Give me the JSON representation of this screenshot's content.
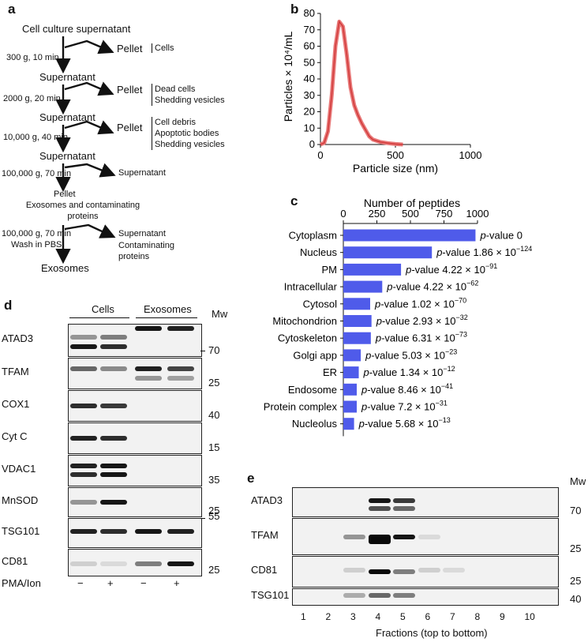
{
  "panel_a": {
    "label": "a",
    "start": "Cell culture supernatant",
    "steps": [
      {
        "condition": "300 g, 10 min",
        "product": "Pellet",
        "notes": [
          "Cells"
        ],
        "next": "Supernatant"
      },
      {
        "condition": "2000 g, 20 min",
        "product": "Pellet",
        "notes": [
          "Dead cells",
          "Shedding vesicles"
        ],
        "next": "Supernatant"
      },
      {
        "condition": "10,000 g, 40 min",
        "product": "Pellet",
        "notes": [
          "Cell debris",
          "Apoptotic bodies",
          "Shedding vesicles"
        ],
        "next": "Supernatant"
      },
      {
        "condition": "100,000 g, 70 min",
        "product": "Supernatant",
        "notes": [],
        "next": "Pellet"
      }
    ],
    "pellet_desc": "Exosomes and contaminating proteins",
    "final_condition_1": "100,000 g, 70 min",
    "final_condition_2": "Wash in PBS",
    "final_product_1": "Supernatant",
    "final_product_2": "Contaminating proteins",
    "final": "Exosomes"
  },
  "panel_b": {
    "label": "b",
    "chart_data": {
      "type": "line",
      "xlabel": "Particle size (nm)",
      "ylabel": "Particles × 10⁴/mL",
      "xlim": [
        0,
        1000
      ],
      "ylim": [
        0,
        80
      ],
      "xticks": [
        0,
        500,
        1000
      ],
      "yticks": [
        0,
        10,
        20,
        30,
        40,
        50,
        60,
        70,
        80
      ],
      "series": [
        {
          "x": [
            0,
            25,
            50,
            75,
            100,
            125,
            150,
            175,
            200,
            225,
            250,
            275,
            300,
            325,
            350,
            400,
            450,
            500,
            550
          ],
          "values": [
            0,
            1,
            8,
            30,
            60,
            75,
            72,
            55,
            35,
            24,
            18,
            13,
            9,
            5,
            3,
            1.5,
            0.8,
            0.3,
            0
          ]
        }
      ],
      "color": "#d23a3a",
      "band_color": "#e87a7a"
    }
  },
  "panel_c": {
    "label": "c",
    "chart_data": {
      "type": "bar",
      "title": "Number of peptides",
      "xlim": [
        0,
        1000
      ],
      "xticks": [
        0,
        250,
        500,
        750,
        1000
      ],
      "categories": [
        "Cytoplasm",
        "Nucleus",
        "PM",
        "Intracellular",
        "Cytosol",
        "Mitochondrion",
        "Cytoskeleton",
        "Golgi app",
        "ER",
        "Endosome",
        "Protein complex",
        "Nucleolus"
      ],
      "values": [
        985,
        660,
        430,
        290,
        200,
        210,
        205,
        130,
        115,
        100,
        100,
        80
      ],
      "pvalues": [
        {
          "base": "0",
          "exp": ""
        },
        {
          "base": "1.86 × 10",
          "exp": "−124"
        },
        {
          "base": "4.22 × 10",
          "exp": "−91"
        },
        {
          "base": "4.22 × 10",
          "exp": "−62"
        },
        {
          "base": "1.02 × 10",
          "exp": "−70"
        },
        {
          "base": "2.93 × 10",
          "exp": "−32"
        },
        {
          "base": "6.31 × 10",
          "exp": "−73"
        },
        {
          "base": "5.03 × 10",
          "exp": "−23"
        },
        {
          "base": "1.34 × 10",
          "exp": "−12"
        },
        {
          "base": "8.46 × 10",
          "exp": "−41"
        },
        {
          "base": "7.2 × 10",
          "exp": "−31"
        },
        {
          "base": "5.68 × 10",
          "exp": "−13"
        }
      ],
      "p_prefix": "p",
      "p_word": "-value",
      "bar_color": "#4f5bea"
    }
  },
  "panel_d": {
    "label": "d",
    "group_cells": "Cells",
    "group_exosomes": "Exosomes",
    "mw_header": "Mw",
    "rows": [
      {
        "name": "ATAD3",
        "mw": "70"
      },
      {
        "name": "TFAM",
        "mw": "25"
      },
      {
        "name": "COX1",
        "mw": "40"
      },
      {
        "name": "Cyt C",
        "mw": "15"
      },
      {
        "name": "VDAC1",
        "mw": "35"
      },
      {
        "name": "MnSOD",
        "mw": "25"
      },
      {
        "name": "TSG101",
        "mw": "55"
      },
      {
        "name": "CD81",
        "mw": "25"
      }
    ],
    "treatment_label": "PMA/Ion",
    "treatment_signs": [
      "−",
      "+",
      "−",
      "+"
    ]
  },
  "panel_e": {
    "label": "e",
    "mw_header": "Mw",
    "rows": [
      {
        "name": "ATAD3",
        "mw": "70"
      },
      {
        "name": "TFAM",
        "mw": "25"
      },
      {
        "name": "CD81",
        "mw": "25"
      },
      {
        "name": "TSG101",
        "mw": "40"
      }
    ],
    "fractions": [
      "1",
      "2",
      "3",
      "4",
      "5",
      "6",
      "7",
      "8",
      "9",
      "10"
    ],
    "xlabel": "Fractions (top to bottom)"
  }
}
